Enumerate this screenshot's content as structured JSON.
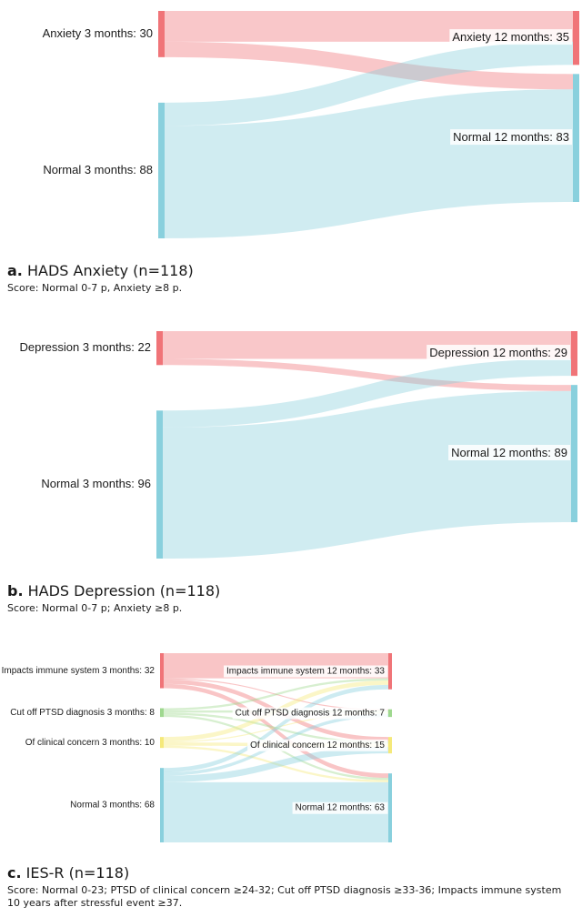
{
  "chart_data": [
    {
      "type": "sankey",
      "letter": "a.",
      "title": "HADS Anxiety (n=118)",
      "score": "Score: Normal 0-7 p, Anxiety ≥8 p.",
      "left_nodes": [
        {
          "label": "Anxiety 3 months: 30",
          "value": 30,
          "color": "#f07478"
        },
        {
          "label": "Normal 3 months: 88",
          "value": 88,
          "color": "#89d0dd"
        }
      ],
      "right_nodes": [
        {
          "label": "Anxiety 12 months: 35",
          "value": 35,
          "color": "#f07478"
        },
        {
          "label": "Normal 12 months: 83",
          "value": 83,
          "color": "#89d0dd"
        }
      ],
      "links": [
        {
          "source": 0,
          "target": 0,
          "value": 20
        },
        {
          "source": 0,
          "target": 1,
          "value": 10
        },
        {
          "source": 1,
          "target": 0,
          "value": 15
        },
        {
          "source": 1,
          "target": 1,
          "value": 73
        }
      ]
    },
    {
      "type": "sankey",
      "letter": "b.",
      "title": "HADS Depression  (n=118)",
      "score": "Score: Normal 0-7 p; Anxiety ≥8 p.",
      "left_nodes": [
        {
          "label": "Depression 3 months: 22",
          "value": 22,
          "color": "#f07478"
        },
        {
          "label": "Normal 3 months: 96",
          "value": 96,
          "color": "#89d0dd"
        }
      ],
      "right_nodes": [
        {
          "label": "Depression 12 months: 29",
          "value": 29,
          "color": "#f07478"
        },
        {
          "label": "Normal 12 months: 89",
          "value": 89,
          "color": "#89d0dd"
        }
      ],
      "links": [
        {
          "source": 0,
          "target": 0,
          "value": 18
        },
        {
          "source": 0,
          "target": 1,
          "value": 4
        },
        {
          "source": 1,
          "target": 0,
          "value": 11
        },
        {
          "source": 1,
          "target": 1,
          "value": 85
        }
      ]
    },
    {
      "type": "sankey",
      "letter": "c.",
      "title": "IES-R  (n=118)",
      "score": "Score: Normal 0-23; PTSD of clinical concern ≥24-32; Cut off PTSD diagnosis ≥33-36; Impacts immune system 10 years after stressful event ≥37.",
      "left_nodes": [
        {
          "label": "Impacts immune system 3 months: 32",
          "value": 32,
          "color": "#f07478"
        },
        {
          "label": "Cut off PTSD diagnosis 3 months: 8",
          "value": 8,
          "color": "#9fd88f"
        },
        {
          "label": "Of clinical concern 3 months: 10",
          "value": 10,
          "color": "#f5e97a"
        },
        {
          "label": "Normal 3 months: 68",
          "value": 68,
          "color": "#89d0dd"
        }
      ],
      "right_nodes": [
        {
          "label": "Impacts immune system 12 months: 33",
          "value": 33,
          "color": "#f07478"
        },
        {
          "label": "Cut off PTSD diagnosis 12 months: 7",
          "value": 7,
          "color": "#9fd88f"
        },
        {
          "label": "Of clinical concern 12 months: 15",
          "value": 15,
          "color": "#f5e97a"
        },
        {
          "label": "Normal 12 months: 63",
          "value": 63,
          "color": "#89d0dd"
        }
      ],
      "links": [
        {
          "source": 0,
          "target": 0,
          "value": 23
        },
        {
          "source": 0,
          "target": 1,
          "value": 1
        },
        {
          "source": 0,
          "target": 2,
          "value": 4
        },
        {
          "source": 0,
          "target": 3,
          "value": 4
        },
        {
          "source": 1,
          "target": 0,
          "value": 2
        },
        {
          "source": 1,
          "target": 1,
          "value": 2
        },
        {
          "source": 1,
          "target": 2,
          "value": 2
        },
        {
          "source": 1,
          "target": 3,
          "value": 2
        },
        {
          "source": 2,
          "target": 0,
          "value": 4
        },
        {
          "source": 2,
          "target": 1,
          "value": 1
        },
        {
          "source": 2,
          "target": 2,
          "value": 3
        },
        {
          "source": 2,
          "target": 3,
          "value": 2
        },
        {
          "source": 3,
          "target": 0,
          "value": 4
        },
        {
          "source": 3,
          "target": 1,
          "value": 3
        },
        {
          "source": 3,
          "target": 2,
          "value": 6
        },
        {
          "source": 3,
          "target": 3,
          "value": 55
        }
      ]
    }
  ]
}
